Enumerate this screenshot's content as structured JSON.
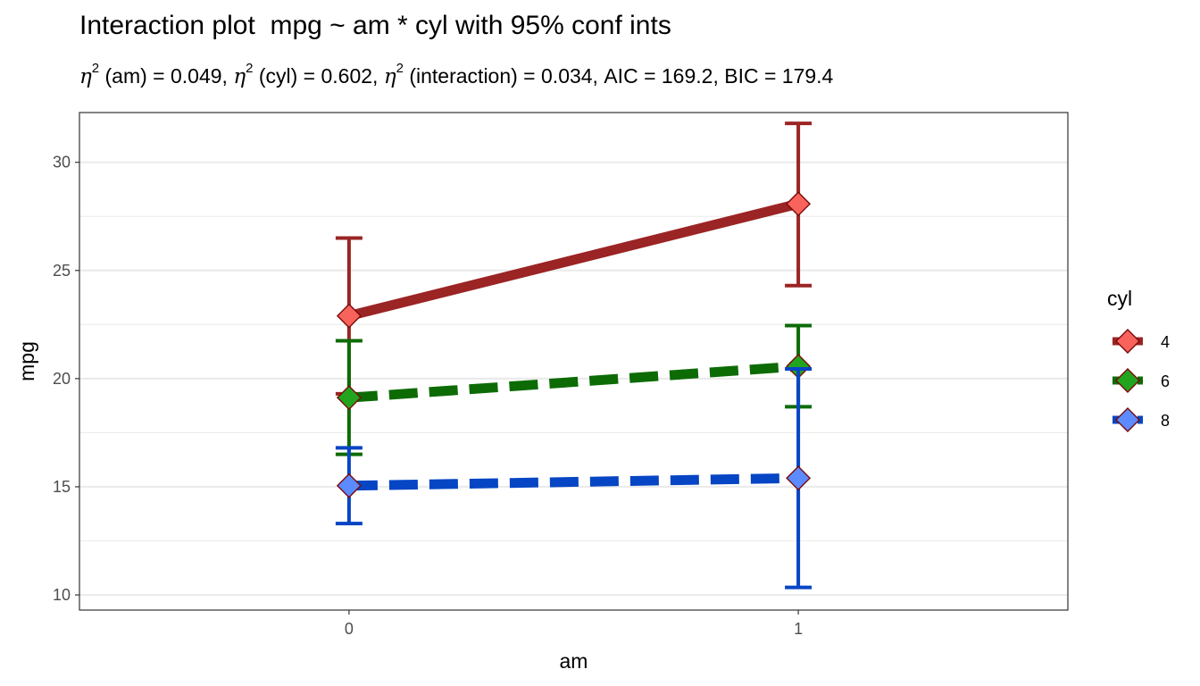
{
  "chart_data": {
    "type": "line",
    "title": "Interaction plot  mpg ~ am * cyl with 95% conf ints",
    "subtitle": {
      "parts": [
        {
          "eta": "η",
          "sup": "2",
          "text": " (am) = 0.049, "
        },
        {
          "eta": "η",
          "sup": "2",
          "text": " (cyl) = 0.602, "
        },
        {
          "eta": "η",
          "sup": "2",
          "text": " (interaction) = 0.034, AIC = 169.2, BIC = 179.4"
        }
      ]
    },
    "xlabel": "am",
    "ylabel": "mpg",
    "categories": [
      "0",
      "1"
    ],
    "ylim": [
      9.3,
      32.3
    ],
    "yticks": [
      10,
      15,
      20,
      25,
      30
    ],
    "grid": true,
    "legend": {
      "title": "cyl",
      "position": "right"
    },
    "series": [
      {
        "name": "4",
        "color": "#9B2424",
        "fill": "#F8635B",
        "dash": "solid",
        "values": [
          22.9,
          28.08
        ],
        "ci_low": [
          19.3,
          24.3
        ],
        "ci_high": [
          26.5,
          31.8
        ]
      },
      {
        "name": "6",
        "color": "#0D6B06",
        "fill": "#22A41E",
        "dash": "dashed",
        "values": [
          19.12,
          20.57
        ],
        "ci_low": [
          16.5,
          18.7
        ],
        "ci_high": [
          21.75,
          22.45
        ]
      },
      {
        "name": "8",
        "color": "#0645C4",
        "fill": "#5C8BFF",
        "dash": "dashed",
        "values": [
          15.05,
          15.4
        ],
        "ci_low": [
          13.3,
          10.35
        ],
        "ci_high": [
          16.8,
          20.45
        ]
      }
    ],
    "marker_edge_color": "#7A0A0A"
  }
}
